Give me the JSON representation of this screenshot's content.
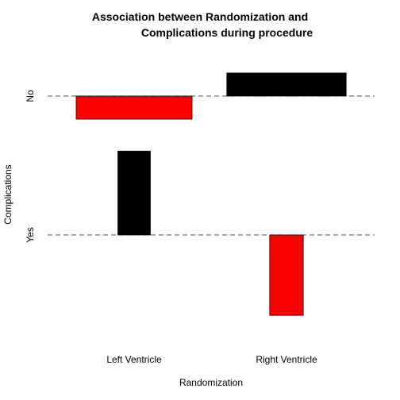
{
  "chart_data": {
    "type": "bar",
    "subtype": "association-plot",
    "title_lines": [
      "Association between Randomization and",
      "Complications during procedure"
    ],
    "xlabel": "Randomization",
    "ylabel": "Complications",
    "x_categories": [
      "Left Ventricle",
      "Right Ventricle"
    ],
    "y_categories": [
      "No",
      "Yes"
    ],
    "cells": [
      {
        "x": "Left Ventricle",
        "y": "No",
        "residual": -0.33,
        "relative_width": 1.0,
        "color": "#ff0000"
      },
      {
        "x": "Left Ventricle",
        "y": "Yes",
        "residual": 1.2,
        "relative_width": 0.28,
        "color": "#000000"
      },
      {
        "x": "Right Ventricle",
        "y": "No",
        "residual": 0.33,
        "relative_width": 1.03,
        "color": "#000000"
      },
      {
        "x": "Right Ventricle",
        "y": "Yes",
        "residual": -1.15,
        "relative_width": 0.29,
        "color": "#ff0000"
      }
    ],
    "colors": {
      "positive": "#000000",
      "negative": "#ff0000"
    },
    "baselines": "dashed"
  }
}
